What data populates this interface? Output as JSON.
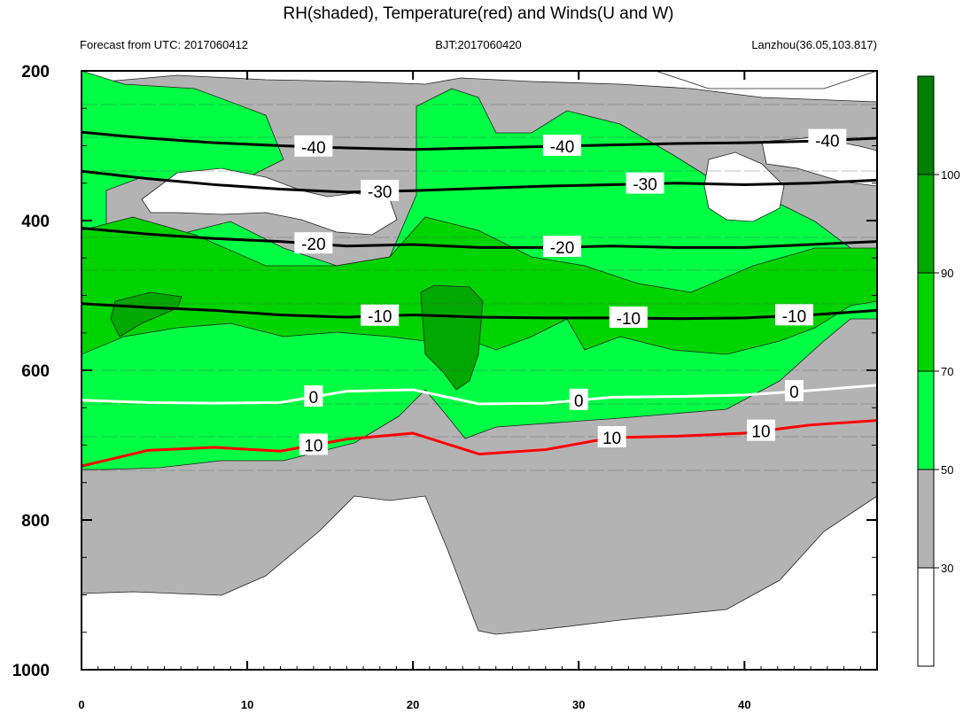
{
  "chart_data": {
    "type": "heatmap",
    "title": "RH(shaded), Temperature(red) and Winds(U and W)",
    "subtitle_left": "Forecast from UTC: 2017060412",
    "subtitle_center": "BJT:2017060420",
    "subtitle_right": "Lanzhou(36.05,103.817)",
    "x_ticks": [
      "0",
      "10",
      "20",
      "30",
      "40"
    ],
    "x_tick_values": [
      0,
      10,
      20,
      30,
      40
    ],
    "xlim": [
      0,
      48
    ],
    "y_ticks": [
      "200",
      "400",
      "600",
      "800",
      "1000"
    ],
    "y_tick_values": [
      200,
      400,
      600,
      800,
      1000
    ],
    "ylim": [
      200,
      1000
    ],
    "y_inverted": true,
    "colorbar": {
      "levels": [
        "30",
        "50",
        "70",
        "90",
        "100"
      ],
      "level_values": [
        30,
        50,
        70,
        90,
        100
      ],
      "colors": [
        "#ffffff",
        "#b3b3b3",
        "#00ff44",
        "#00d400",
        "#00a800",
        "#007f00"
      ]
    },
    "temperature_contours": [
      {
        "label": "-40",
        "value": -40,
        "color": "#000000",
        "x": [
          0,
          4,
          8,
          12,
          16,
          20,
          24,
          28,
          32,
          36,
          40,
          44,
          48
        ],
        "p": [
          282,
          290,
          296,
          300,
          303,
          305,
          303,
          301,
          299,
          297,
          296,
          294,
          290
        ]
      },
      {
        "label": "-30",
        "value": -30,
        "color": "#000000",
        "x": [
          0,
          4,
          8,
          12,
          16,
          20,
          24,
          28,
          32,
          36,
          40,
          44,
          48
        ],
        "p": [
          334,
          344,
          352,
          358,
          362,
          360,
          357,
          354,
          352,
          350,
          352,
          350,
          346
        ]
      },
      {
        "label": "-20",
        "value": -20,
        "color": "#000000",
        "x": [
          0,
          4,
          8,
          12,
          16,
          20,
          24,
          28,
          32,
          36,
          40,
          44,
          48
        ],
        "p": [
          410,
          418,
          424,
          428,
          434,
          432,
          436,
          436,
          434,
          436,
          436,
          432,
          428
        ]
      },
      {
        "label": "-10",
        "value": -10,
        "color": "#000000",
        "x": [
          0,
          4,
          8,
          12,
          16,
          20,
          24,
          28,
          32,
          36,
          40,
          44,
          48
        ],
        "p": [
          511,
          516,
          520,
          526,
          529,
          526,
          529,
          530,
          530,
          531,
          530,
          526,
          520
        ]
      },
      {
        "label": "0",
        "value": 0,
        "color": "#ffffff",
        "x": [
          0,
          4,
          8,
          12,
          16,
          20,
          24,
          28,
          32,
          36,
          40,
          44,
          48
        ],
        "p": [
          640,
          643,
          644,
          643,
          628,
          626,
          645,
          644,
          636,
          635,
          633,
          627,
          620
        ]
      },
      {
        "label": "10",
        "value": 10,
        "color": "#ff0000",
        "x": [
          0,
          4,
          8,
          12,
          16,
          20,
          24,
          28,
          32,
          36,
          40,
          44,
          48
        ],
        "p": [
          728,
          707,
          703,
          708,
          692,
          684,
          712,
          706,
          690,
          688,
          684,
          673,
          667
        ]
      }
    ],
    "rh_field_note": "filled contours of relative humidity (%)"
  }
}
